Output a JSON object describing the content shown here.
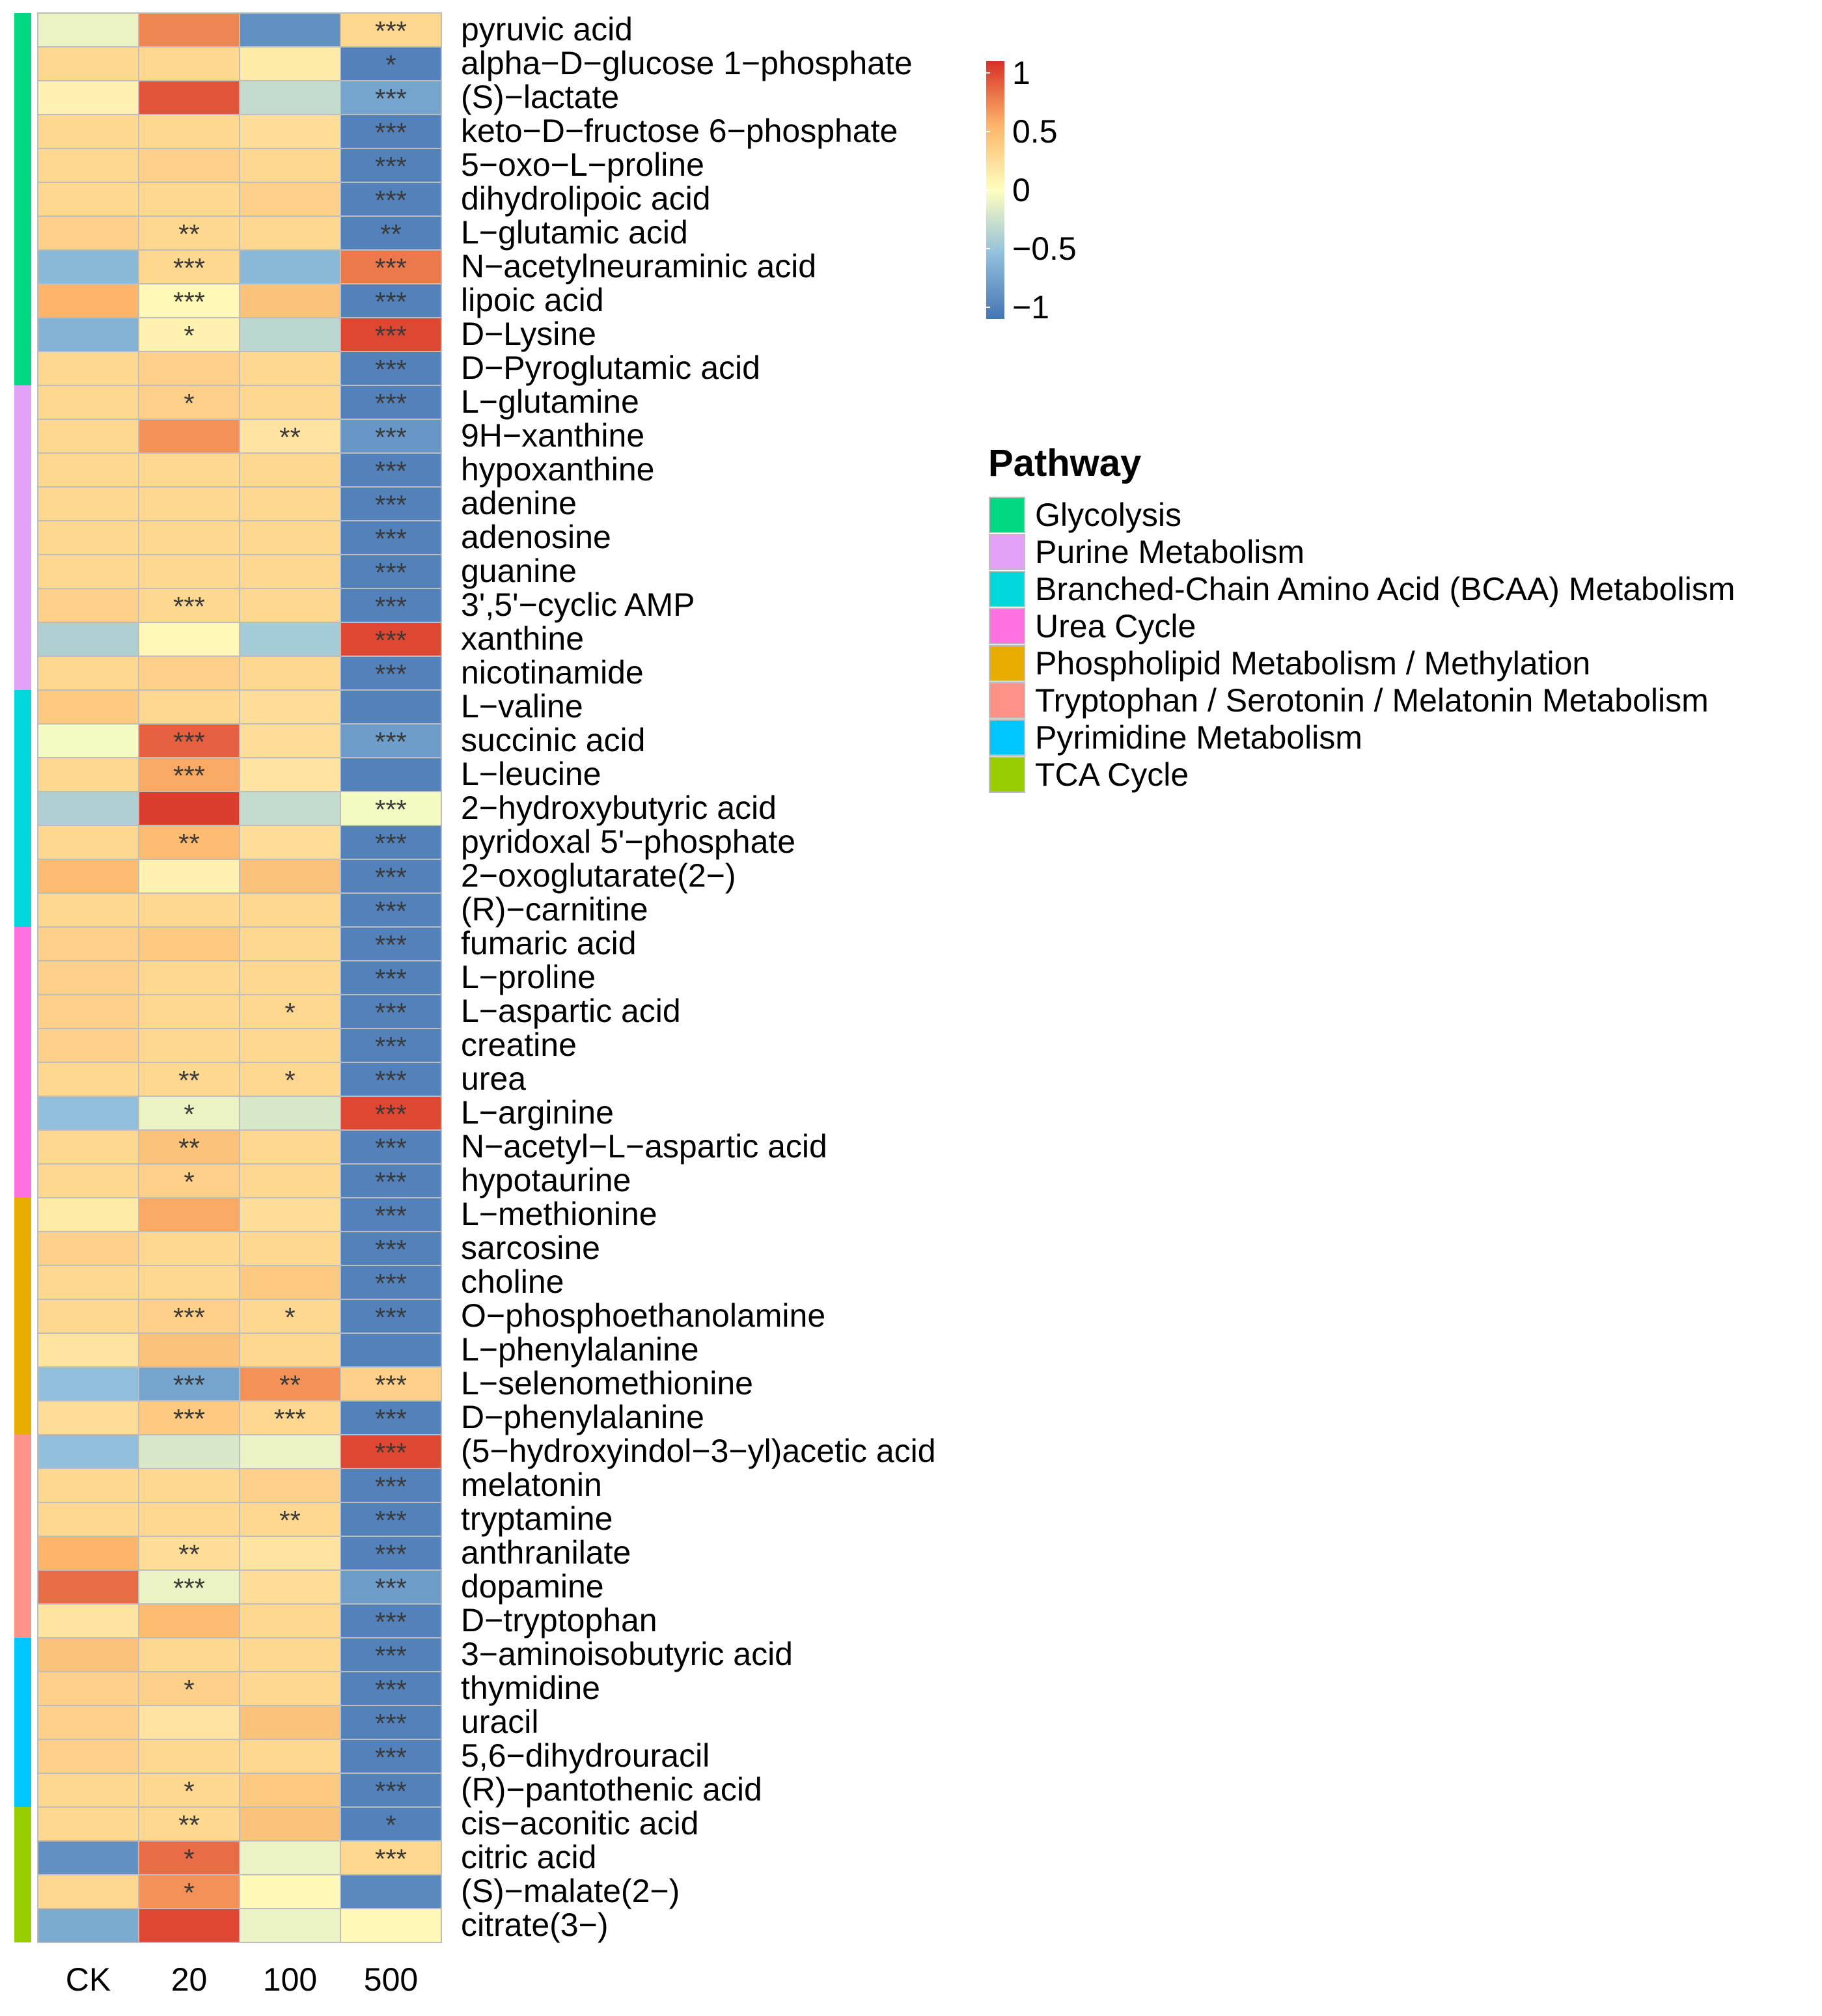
{
  "chart_data": {
    "type": "heatmap",
    "columns": [
      "CK",
      "20",
      "100",
      "500"
    ],
    "colorbar": {
      "ticks": [
        1,
        0.5,
        0,
        -0.5,
        -1
      ],
      "tick_labels": [
        "1",
        "0.5",
        "0",
        "−0.5",
        "−1"
      ],
      "range": [
        -1.1,
        1.1
      ]
    },
    "colors": {
      "low": "#4575b4",
      "low_mid": "#91bfdb",
      "mid": "#ffffbf",
      "high_mid": "#fdb56a",
      "high": "#d73027",
      "star": "#3a3a3a",
      "cell_border": "#bdbdbd"
    },
    "pathway_legend": {
      "title": "Pathway",
      "items": [
        {
          "name": "Glycolysis",
          "color": "#00d882"
        },
        {
          "name": "Purine Metabolism",
          "color": "#e3a1f6"
        },
        {
          "name": "Branched-Chain Amino Acid (BCAA) Metabolism",
          "color": "#00d8dc"
        },
        {
          "name": "Urea Cycle",
          "color": "#ff71df"
        },
        {
          "name": "Phospholipid Metabolism / Methylation",
          "color": "#e8ad00"
        },
        {
          "name": "Tryptophan / Serotonin / Melatonin Metabolism",
          "color": "#ff9286"
        },
        {
          "name": "Pyrimidine Metabolism",
          "color": "#00c6ff"
        },
        {
          "name": "TCA Cycle",
          "color": "#98cd00"
        }
      ]
    },
    "rows": [
      {
        "name": "pyruvic acid",
        "pathway": 0,
        "values": [
          -0.1,
          0.75,
          -0.9,
          0.3
        ],
        "stars": [
          "",
          "",
          "",
          "***"
        ]
      },
      {
        "name": "alpha−D−glucose 1−phosphate",
        "pathway": 0,
        "values": [
          0.3,
          0.3,
          0.15,
          -1.0
        ],
        "stars": [
          "",
          "",
          "",
          "*"
        ]
      },
      {
        "name": "(S)−lactate",
        "pathway": 0,
        "values": [
          0.1,
          0.95,
          -0.3,
          -0.75
        ],
        "stars": [
          "",
          "",
          "",
          "***"
        ]
      },
      {
        "name": "keto−D−fructose 6−phosphate",
        "pathway": 0,
        "values": [
          0.3,
          0.3,
          0.25,
          -1.0
        ],
        "stars": [
          "",
          "",
          "",
          "***"
        ]
      },
      {
        "name": "5−oxo−L−proline",
        "pathway": 0,
        "values": [
          0.3,
          0.35,
          0.3,
          -1.0
        ],
        "stars": [
          "",
          "",
          "",
          "***"
        ]
      },
      {
        "name": "dihydrolipoic acid",
        "pathway": 0,
        "values": [
          0.3,
          0.3,
          0.35,
          -1.0
        ],
        "stars": [
          "",
          "",
          "",
          "***"
        ]
      },
      {
        "name": "L−glutamic acid",
        "pathway": 0,
        "values": [
          0.35,
          0.3,
          0.3,
          -1.0
        ],
        "stars": [
          "",
          "**",
          "",
          "**"
        ]
      },
      {
        "name": "N−acetylneuraminic acid",
        "pathway": 0,
        "values": [
          -0.6,
          0.3,
          -0.6,
          0.8
        ],
        "stars": [
          "",
          "***",
          "",
          "***"
        ]
      },
      {
        "name": "lipoic acid",
        "pathway": 0,
        "values": [
          0.55,
          0.05,
          0.45,
          -1.0
        ],
        "stars": [
          "",
          "***",
          "",
          "***"
        ]
      },
      {
        "name": "D−Lysine",
        "pathway": 0,
        "values": [
          -0.65,
          0.1,
          -0.35,
          1.0
        ],
        "stars": [
          "",
          "*",
          "",
          "***"
        ]
      },
      {
        "name": "D−Pyroglutamic acid",
        "pathway": 0,
        "values": [
          0.3,
          0.35,
          0.3,
          -1.0
        ],
        "stars": [
          "",
          "",
          "",
          "***"
        ]
      },
      {
        "name": "L−glutamine",
        "pathway": 1,
        "values": [
          0.3,
          0.35,
          0.3,
          -1.0
        ],
        "stars": [
          "",
          "*",
          "",
          "***"
        ]
      },
      {
        "name": "9H−xanthine",
        "pathway": 1,
        "values": [
          0.3,
          0.7,
          0.2,
          -0.85
        ],
        "stars": [
          "",
          "",
          "**",
          "***"
        ]
      },
      {
        "name": "hypoxanthine",
        "pathway": 1,
        "values": [
          0.3,
          0.3,
          0.3,
          -1.0
        ],
        "stars": [
          "",
          "",
          "",
          "***"
        ]
      },
      {
        "name": "adenine",
        "pathway": 1,
        "values": [
          0.3,
          0.3,
          0.3,
          -1.0
        ],
        "stars": [
          "",
          "",
          "",
          "***"
        ]
      },
      {
        "name": "adenosine",
        "pathway": 1,
        "values": [
          0.3,
          0.3,
          0.3,
          -1.0
        ],
        "stars": [
          "",
          "",
          "",
          "***"
        ]
      },
      {
        "name": "guanine",
        "pathway": 1,
        "values": [
          0.3,
          0.3,
          0.3,
          -1.0
        ],
        "stars": [
          "",
          "",
          "",
          "***"
        ]
      },
      {
        "name": "3',5'−cyclic AMP",
        "pathway": 1,
        "values": [
          0.35,
          0.3,
          0.3,
          -1.0
        ],
        "stars": [
          "",
          "***",
          "",
          "***"
        ]
      },
      {
        "name": "xanthine",
        "pathway": 1,
        "values": [
          -0.4,
          0.05,
          -0.45,
          1.0
        ],
        "stars": [
          "",
          "",
          "",
          "***"
        ]
      },
      {
        "name": "nicotinamide",
        "pathway": 1,
        "values": [
          0.3,
          0.35,
          0.3,
          -1.0
        ],
        "stars": [
          "",
          "",
          "",
          "***"
        ]
      },
      {
        "name": "L−valine",
        "pathway": 2,
        "values": [
          0.4,
          0.3,
          0.25,
          -1.0
        ],
        "stars": [
          "",
          "",
          "",
          ""
        ]
      },
      {
        "name": "succinic acid",
        "pathway": 2,
        "values": [
          -0.05,
          0.9,
          0.25,
          -0.8
        ],
        "stars": [
          "",
          "***",
          "",
          "***"
        ]
      },
      {
        "name": "L−leucine",
        "pathway": 2,
        "values": [
          0.3,
          0.6,
          0.2,
          -1.0
        ],
        "stars": [
          "",
          "***",
          "",
          ""
        ]
      },
      {
        "name": "2−hydroxybutyric acid",
        "pathway": 2,
        "values": [
          -0.4,
          1.05,
          -0.3,
          -0.05
        ],
        "stars": [
          "",
          "",
          "",
          "***"
        ]
      },
      {
        "name": "pyridoxal 5'−phosphate",
        "pathway": 2,
        "values": [
          0.3,
          0.5,
          0.25,
          -1.0
        ],
        "stars": [
          "",
          "**",
          "",
          "***"
        ]
      },
      {
        "name": "2−oxoglutarate(2−)",
        "pathway": 2,
        "values": [
          0.5,
          0.1,
          0.45,
          -1.0
        ],
        "stars": [
          "",
          "",
          "",
          "***"
        ]
      },
      {
        "name": "(R)−carnitine",
        "pathway": 2,
        "values": [
          0.3,
          0.3,
          0.3,
          -1.0
        ],
        "stars": [
          "",
          "",
          "",
          "***"
        ]
      },
      {
        "name": "fumaric acid",
        "pathway": 3,
        "values": [
          0.35,
          0.4,
          0.3,
          -1.0
        ],
        "stars": [
          "",
          "",
          "",
          "***"
        ]
      },
      {
        "name": "L−proline",
        "pathway": 3,
        "values": [
          0.35,
          0.3,
          0.3,
          -1.0
        ],
        "stars": [
          "",
          "",
          "",
          "***"
        ]
      },
      {
        "name": "L−aspartic acid",
        "pathway": 3,
        "values": [
          0.35,
          0.3,
          0.3,
          -1.0
        ],
        "stars": [
          "",
          "",
          "*",
          "***"
        ]
      },
      {
        "name": "creatine",
        "pathway": 3,
        "values": [
          0.35,
          0.3,
          0.3,
          -1.0
        ],
        "stars": [
          "",
          "",
          "",
          "***"
        ]
      },
      {
        "name": "urea",
        "pathway": 3,
        "values": [
          0.3,
          0.3,
          0.3,
          -1.0
        ],
        "stars": [
          "",
          "**",
          "*",
          "***"
        ]
      },
      {
        "name": "L−arginine",
        "pathway": 3,
        "values": [
          -0.55,
          -0.1,
          -0.2,
          1.0
        ],
        "stars": [
          "",
          "*",
          "",
          "***"
        ]
      },
      {
        "name": "N−acetyl−L−aspartic acid",
        "pathway": 3,
        "values": [
          0.3,
          0.45,
          0.3,
          -1.0
        ],
        "stars": [
          "",
          "**",
          "",
          "***"
        ]
      },
      {
        "name": "hypotaurine",
        "pathway": 3,
        "values": [
          0.3,
          0.35,
          0.3,
          -1.0
        ],
        "stars": [
          "",
          "*",
          "",
          "***"
        ]
      },
      {
        "name": "L−methionine",
        "pathway": 4,
        "values": [
          0.15,
          0.6,
          0.25,
          -1.0
        ],
        "stars": [
          "",
          "",
          "",
          "***"
        ]
      },
      {
        "name": "sarcosine",
        "pathway": 4,
        "values": [
          0.35,
          0.3,
          0.3,
          -1.0
        ],
        "stars": [
          "",
          "",
          "",
          "***"
        ]
      },
      {
        "name": "choline",
        "pathway": 4,
        "values": [
          0.3,
          0.3,
          0.4,
          -1.0
        ],
        "stars": [
          "",
          "",
          "",
          "***"
        ]
      },
      {
        "name": "O−phosphoethanolamine",
        "pathway": 4,
        "values": [
          0.3,
          0.35,
          0.3,
          -1.0
        ],
        "stars": [
          "",
          "***",
          "*",
          "***"
        ]
      },
      {
        "name": "L−phenylalanine",
        "pathway": 4,
        "values": [
          0.2,
          0.45,
          0.3,
          -1.0
        ],
        "stars": [
          "",
          "",
          "",
          ""
        ]
      },
      {
        "name": "L−selenomethionine",
        "pathway": 4,
        "values": [
          -0.55,
          -0.75,
          0.7,
          0.35
        ],
        "stars": [
          "",
          "***",
          "**",
          "***"
        ]
      },
      {
        "name": "D−phenylalanine",
        "pathway": 4,
        "values": [
          0.25,
          0.4,
          0.3,
          -1.0
        ],
        "stars": [
          "",
          "***",
          "***",
          "***"
        ]
      },
      {
        "name": "(5−hydroxyindol−3−yl)acetic acid",
        "pathway": 5,
        "values": [
          -0.55,
          -0.2,
          -0.1,
          1.0
        ],
        "stars": [
          "",
          "",
          "",
          "***"
        ]
      },
      {
        "name": "melatonin",
        "pathway": 5,
        "values": [
          0.3,
          0.3,
          0.35,
          -1.0
        ],
        "stars": [
          "",
          "",
          "",
          "***"
        ]
      },
      {
        "name": "tryptamine",
        "pathway": 5,
        "values": [
          0.3,
          0.3,
          0.3,
          -1.0
        ],
        "stars": [
          "",
          "",
          "**",
          "***"
        ]
      },
      {
        "name": "anthranilate",
        "pathway": 5,
        "values": [
          0.55,
          0.25,
          0.2,
          -1.0
        ],
        "stars": [
          "",
          "**",
          "",
          "***"
        ]
      },
      {
        "name": "dopamine",
        "pathway": 5,
        "values": [
          0.85,
          -0.1,
          0.25,
          -0.8
        ],
        "stars": [
          "",
          "***",
          "",
          "***"
        ]
      },
      {
        "name": "D−tryptophan",
        "pathway": 5,
        "values": [
          0.2,
          0.5,
          0.3,
          -1.0
        ],
        "stars": [
          "",
          "",
          "",
          "***"
        ]
      },
      {
        "name": "3−aminoisobutyric acid",
        "pathway": 6,
        "values": [
          0.45,
          0.3,
          0.3,
          -1.0
        ],
        "stars": [
          "",
          "",
          "",
          "***"
        ]
      },
      {
        "name": "thymidine",
        "pathway": 6,
        "values": [
          0.35,
          0.35,
          0.3,
          -1.0
        ],
        "stars": [
          "",
          "*",
          "",
          "***"
        ]
      },
      {
        "name": "uracil",
        "pathway": 6,
        "values": [
          0.35,
          0.2,
          0.45,
          -1.0
        ],
        "stars": [
          "",
          "",
          "",
          "***"
        ]
      },
      {
        "name": "5,6−dihydrouracil",
        "pathway": 6,
        "values": [
          0.35,
          0.3,
          0.3,
          -1.0
        ],
        "stars": [
          "",
          "",
          "",
          "***"
        ]
      },
      {
        "name": "(R)−pantothenic acid",
        "pathway": 6,
        "values": [
          0.3,
          0.3,
          0.4,
          -1.0
        ],
        "stars": [
          "",
          "*",
          "",
          "***"
        ]
      },
      {
        "name": "cis−aconitic acid",
        "pathway": 7,
        "values": [
          0.3,
          0.3,
          0.45,
          -1.0
        ],
        "stars": [
          "",
          "**",
          "",
          "*"
        ]
      },
      {
        "name": "citric acid",
        "pathway": 7,
        "values": [
          -0.9,
          0.85,
          -0.1,
          0.3
        ],
        "stars": [
          "",
          "*",
          "",
          "***"
        ]
      },
      {
        "name": "(S)−malate(2−)",
        "pathway": 7,
        "values": [
          0.3,
          0.7,
          0.05,
          -0.95
        ],
        "stars": [
          "",
          "*",
          "",
          ""
        ]
      },
      {
        "name": "citrate(3−)",
        "pathway": 7,
        "values": [
          -0.7,
          1.0,
          -0.1,
          0.05
        ],
        "stars": [
          "",
          "",
          "",
          ""
        ]
      }
    ]
  }
}
